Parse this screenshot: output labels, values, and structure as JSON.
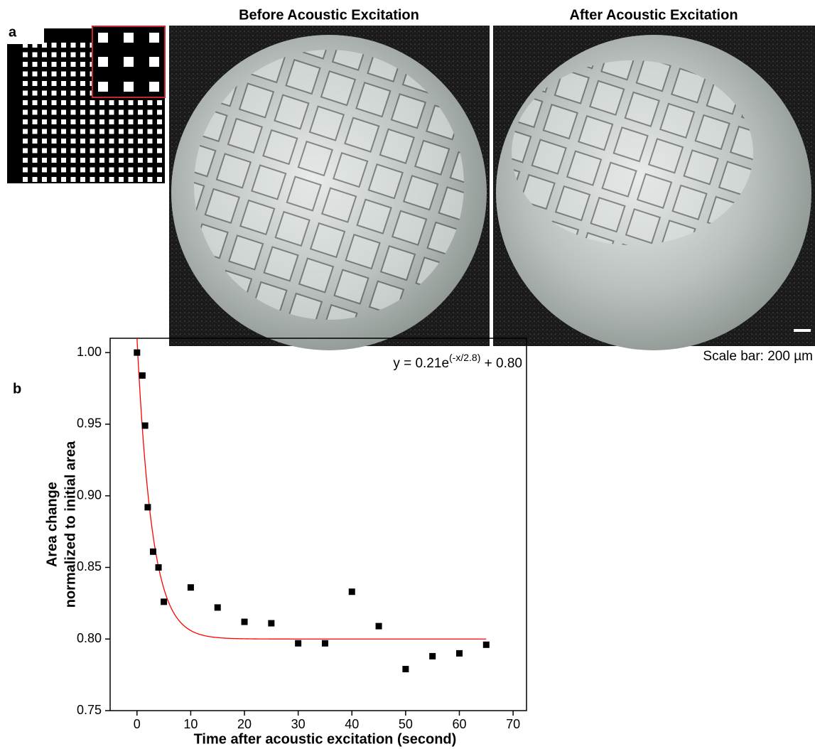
{
  "panel_a": {
    "label": "a",
    "titles": [
      "Before Acoustic Excitation",
      "After Acoustic Excitation"
    ],
    "scale_bar": "Scale bar: 200 µm"
  },
  "chart_data": {
    "type": "scatter",
    "panel_label": "b",
    "x_label": "Time after acoustic excitation (second)",
    "y_label": [
      "Area change",
      "normalized to initial area"
    ],
    "x": [
      0,
      1,
      1.5,
      2,
      3,
      4,
      5,
      10,
      15,
      20,
      25,
      30,
      35,
      40,
      45,
      50,
      55,
      60,
      65
    ],
    "values": [
      1.0,
      0.984,
      0.949,
      0.892,
      0.861,
      0.85,
      0.826,
      0.836,
      0.822,
      0.812,
      0.811,
      0.797,
      0.797,
      0.833,
      0.809,
      0.779,
      0.788,
      0.79,
      0.796
    ],
    "color": "#000000",
    "xlim": [
      -5,
      72.5
    ],
    "xticks": [
      0,
      10,
      20,
      30,
      40,
      50,
      60,
      70
    ],
    "ylim": [
      0.75,
      1.01
    ],
    "yticks": [
      {
        "value": 0.75,
        "label": "0.75"
      },
      {
        "value": 0.8,
        "label": "0.80"
      },
      {
        "value": 0.85,
        "label": "0.85"
      },
      {
        "value": 0.9,
        "label": "0.90"
      },
      {
        "value": 0.95,
        "label": "0.95"
      },
      {
        "value": 1,
        "label": "1.00"
      }
    ],
    "fit": {
      "a": 0.21,
      "tau": 2.8,
      "c": 0.8,
      "x_range": [
        0,
        65
      ],
      "color": "#ff0000",
      "label": [
        "y = 0.21e",
        "(-x/2.8)",
        " + 0.80"
      ]
    }
  }
}
